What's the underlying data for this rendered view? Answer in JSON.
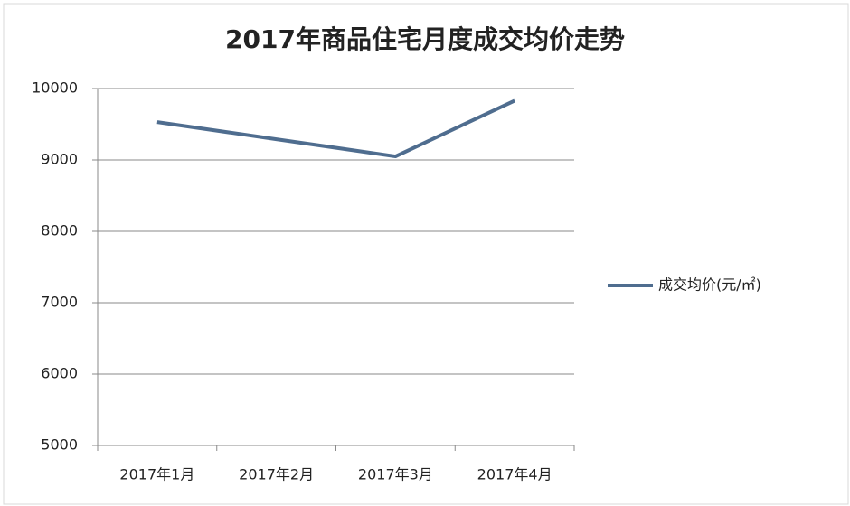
{
  "chart_data": {
    "type": "line",
    "title": "2017年商品住宅月度成交均价走势",
    "categories": [
      "2017年1月",
      "2017年2月",
      "2017年3月",
      "2017年4月"
    ],
    "series": [
      {
        "name": "成交均价(元/㎡)",
        "color": "#4f6d8f",
        "values": [
          9530,
          9290,
          9050,
          9830
        ]
      }
    ],
    "ylim": [
      5000,
      10000
    ],
    "yticks": [
      5000,
      6000,
      7000,
      8000,
      9000,
      10000
    ],
    "grid": true,
    "legend": "right"
  }
}
